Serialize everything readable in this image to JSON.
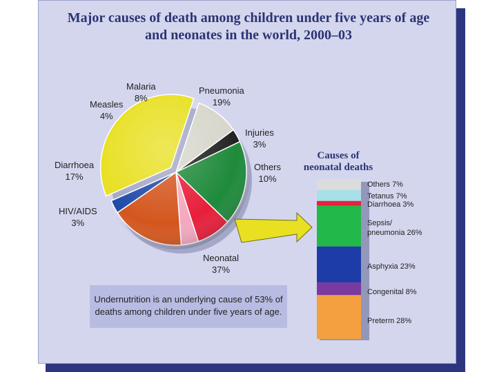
{
  "title": {
    "line1": "Major causes of death among children under five years of age",
    "line2": "and neonates in the world, 2000–03"
  },
  "chart_data": [
    {
      "type": "pie",
      "title": "Major causes of death among children under five years of age and neonates in the world, 2000–03",
      "slices": [
        {
          "name": "Neonatal",
          "value": 37,
          "label": "37%",
          "color": "#e8e020",
          "exploded": true
        },
        {
          "name": "Others",
          "value": 10,
          "label": "10%",
          "color": "#d6d6cc"
        },
        {
          "name": "Injuries",
          "value": 3,
          "label": "3%",
          "color": "#222222"
        },
        {
          "name": "Pneumonia",
          "value": 19,
          "label": "19%",
          "color": "#1e8a3a"
        },
        {
          "name": "Malaria",
          "value": 8,
          "label": "8%",
          "color": "#e81e3a"
        },
        {
          "name": "Measles",
          "value": 4,
          "label": "4%",
          "color": "#f4a8c0"
        },
        {
          "name": "Diarrhoea",
          "value": 17,
          "label": "17%",
          "color": "#d4561e"
        },
        {
          "name": "HIV/AIDS",
          "value": 3,
          "label": "3%",
          "color": "#1e4aa8"
        }
      ]
    },
    {
      "type": "bar",
      "title": "Causes of neonatal deaths",
      "stacked": true,
      "segments": [
        {
          "name": "Others",
          "value": 7,
          "label": "Others 7%",
          "color": "#dcdcdc"
        },
        {
          "name": "Tetanus",
          "value": 7,
          "label": "Tetanus 7%",
          "color": "#a8e0e8"
        },
        {
          "name": "Diarrhoea",
          "value": 3,
          "label": "Diarrhoea 3%",
          "color": "#e8203a"
        },
        {
          "name": "Sepsis/pneumonia",
          "value": 26,
          "label": "Sepsis/ pneumonia 26%",
          "color": "#22b84a"
        },
        {
          "name": "Asphyxia",
          "value": 23,
          "label": "Asphyxia 23%",
          "color": "#1e3ca8"
        },
        {
          "name": "Congenital",
          "value": 8,
          "label": "Congenital 8%",
          "color": "#7a3aa0"
        },
        {
          "name": "Preterm",
          "value": 28,
          "label": "Preterm 28%",
          "color": "#f4a040"
        }
      ]
    }
  ],
  "pie_labels": {
    "malaria": {
      "name": "Malaria",
      "pct": "8%"
    },
    "measles": {
      "name": "Measles",
      "pct": "4%"
    },
    "pneumonia": {
      "name": "Pneumonia",
      "pct": "19%"
    },
    "injuries": {
      "name": "Injuries",
      "pct": "3%"
    },
    "others": {
      "name": "Others",
      "pct": "10%"
    },
    "diarrhoea": {
      "name": "Diarrhoea",
      "pct": "17%"
    },
    "hiv": {
      "name": "HIV/AIDS",
      "pct": "3%"
    },
    "neonatal": {
      "name": "Neonatal",
      "pct": "37%"
    }
  },
  "bar_title": {
    "line1": "Causes of",
    "line2": "neonatal deaths"
  },
  "bar_labels": {
    "others": "Others 7%",
    "tetanus": "Tetanus 7%",
    "diarrhoea": "Diarrhoea 3%",
    "sepsis_1": "Sepsis/",
    "sepsis_2": "pneumonia 26%",
    "asphyxia": "Asphyxia 23%",
    "congenital": "Congenital 8%",
    "preterm": "Preterm 28%"
  },
  "note": "Undernutrition is an underlying cause of 53% of deaths among children under five years of age."
}
